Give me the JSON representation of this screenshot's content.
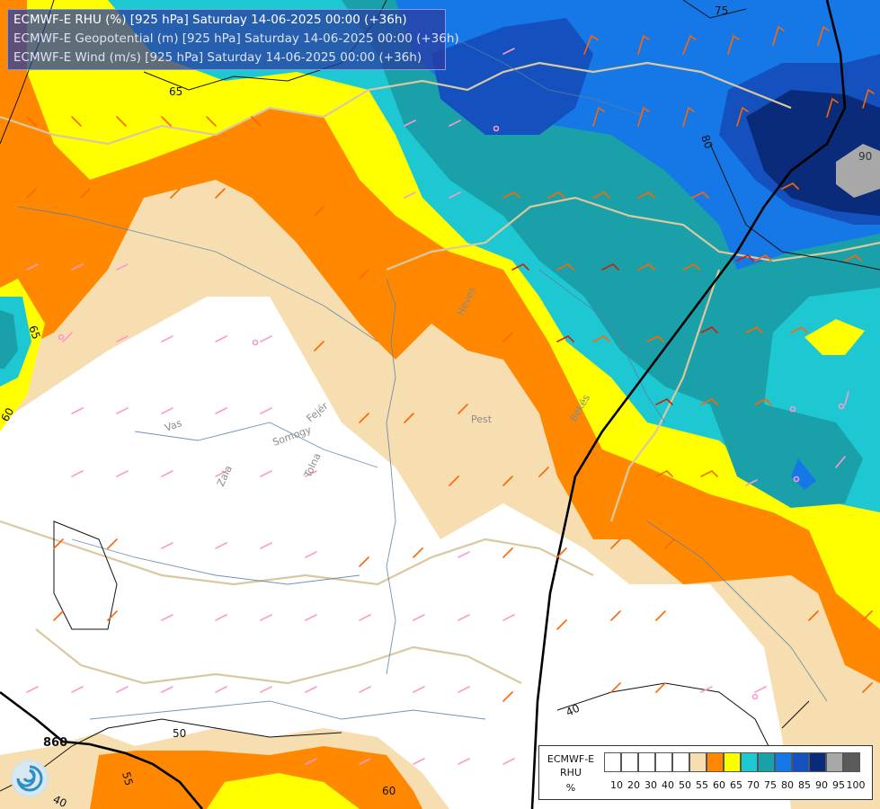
{
  "titles": {
    "line1": "ECMWF-E RHU (%) [925 hPa] Saturday 14-06-2025 00:00 (+36h)",
    "line2": "ECMWF-E Geopotential (m) [925 hPa] Saturday 14-06-2025 00:00 (+36h)",
    "line3": "ECMWF-E Wind (m/s) [925 hPa] Saturday 14-06-2025 00:00 (+36h)"
  },
  "contour_labels": [
    {
      "text": "75",
      "class": "geo"
    },
    {
      "text": "65",
      "class": "geo"
    },
    {
      "text": "80",
      "class": "geo"
    },
    {
      "text": "90",
      "class": "geo"
    },
    {
      "text": "65",
      "class": "geo"
    },
    {
      "text": "60",
      "class": "geo"
    },
    {
      "text": "50",
      "class": "geo"
    },
    {
      "text": "55",
      "class": "geo"
    },
    {
      "text": "60",
      "class": "geo"
    },
    {
      "text": "40",
      "class": "geo"
    },
    {
      "text": "40",
      "class": "geo"
    },
    {
      "text": "860",
      "class": "geo-bold"
    }
  ],
  "place_labels": [
    "Heves",
    "Pest",
    "Vas",
    "Zala",
    "Somogy",
    "Tolna",
    "Fejér",
    "Békés"
  ],
  "legend": {
    "name_line1": "ECMWF-E",
    "name_line2": "RHU",
    "name_line3": "%",
    "ticks": [
      "10",
      "20",
      "30",
      "40",
      "50",
      "55",
      "60",
      "65",
      "70",
      "75",
      "80",
      "85",
      "90",
      "95",
      "100"
    ],
    "colors": [
      "#ffffff",
      "#ffffff",
      "#ffffff",
      "#ffffff",
      "#ffffff",
      "#f6deb0",
      "#ff8800",
      "#ffff00",
      "#1ec8d2",
      "#1aa0a8",
      "#1678e6",
      "#1450be",
      "#0a2a7a",
      "#a8a8a8",
      "#5a5a5a"
    ]
  },
  "colors": {
    "rhu_lt50": "#ffffff",
    "rhu_50_55": "#f6deb0",
    "rhu_55_60": "#ff8800",
    "rhu_60_65": "#ffff00",
    "rhu_65_70": "#1ec8d2",
    "rhu_70_75": "#1aa0a8",
    "rhu_75_80": "#1678e6",
    "rhu_80_85": "#1450be",
    "rhu_85_90": "#0a2a7a",
    "rhu_90_95": "#a8a8a8"
  }
}
